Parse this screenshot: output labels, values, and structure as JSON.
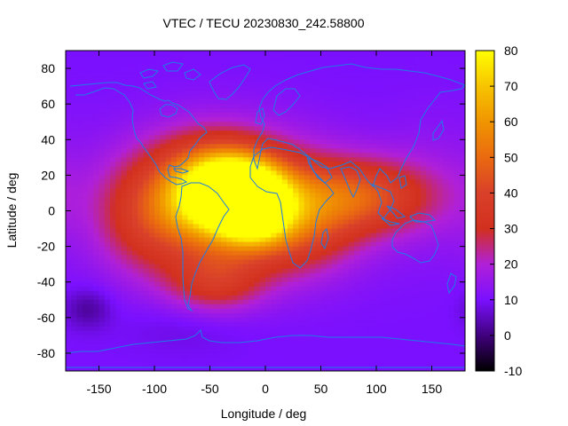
{
  "chart_data": {
    "type": "heatmap",
    "title": "VTEC / TECU 20230830_242.58800",
    "xlabel": "Longitude / deg",
    "ylabel": "Latitude / deg",
    "xlim": [
      -180,
      180
    ],
    "ylim": [
      -90,
      90
    ],
    "x_ticks": [
      -150,
      -100,
      -50,
      0,
      50,
      100,
      150
    ],
    "y_ticks": [
      -80,
      -60,
      -40,
      -20,
      0,
      20,
      40,
      60,
      80
    ],
    "colorbar": {
      "range": [
        -10,
        80
      ],
      "ticks": [
        -10,
        0,
        10,
        20,
        30,
        40,
        50,
        60,
        70,
        80
      ],
      "colormap": "gnuplot pm3d (black-purple-red-orange-yellow)"
    },
    "background_level": 10,
    "features": [
      {
        "name": "main equatorial crest",
        "lon": -25,
        "lat": 12,
        "vtec": 78
      },
      {
        "name": "secondary crest",
        "lon": -10,
        "lat": -2,
        "vtec": 72
      },
      {
        "name": "western crest",
        "lon": -55,
        "lat": 8,
        "vtec": 60
      },
      {
        "name": "africa tail",
        "lon": 25,
        "lat": -8,
        "vtec": 52
      },
      {
        "name": "indian ocean arm",
        "lon": 85,
        "lat": 8,
        "vtec": 45
      },
      {
        "name": "south american lobe",
        "lon": -45,
        "lat": -40,
        "vtec": 36
      },
      {
        "name": "pacific low",
        "lon": -160,
        "lat": -55,
        "vtec": 2
      }
    ]
  }
}
